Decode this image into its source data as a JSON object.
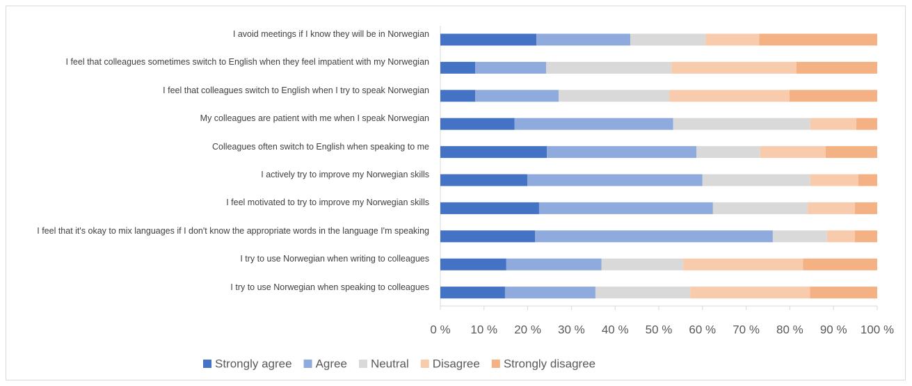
{
  "chart_data": {
    "type": "bar",
    "orientation": "horizontal",
    "stacked": true,
    "categories": [
      "I avoid meetings if I know they will be in Norwegian",
      "I feel that colleagues sometimes switch to English when they feel impatient with my Norwegian",
      "I feel that colleagues switch to English when I try to speak Norwegian",
      "My colleagues are patient with me when I speak Norwegian",
      "Colleagues often switch to English when speaking to me",
      "I actively try to improve my Norwegian skills",
      "I feel motivated to try to improve my Norwegian skills",
      "I feel that it's okay to mix languages if I don't know the appropriate words in the language I'm speaking",
      "I try to use Norwegian when writing to colleagues",
      "I try to use Norwegian when speaking to colleagues"
    ],
    "series": [
      {
        "name": "Strongly agree",
        "color": "#4472c4",
        "values": [
          22.0,
          8.0,
          8.0,
          17.0,
          24.4,
          19.9,
          22.6,
          21.7,
          15.1,
          14.8
        ]
      },
      {
        "name": "Agree",
        "color": "#8faadc",
        "values": [
          21.5,
          16.2,
          19.1,
          36.3,
          34.2,
          40.1,
          39.8,
          54.4,
          21.8,
          20.7
        ]
      },
      {
        "name": "Neutral",
        "color": "#d9d9d9",
        "values": [
          17.2,
          28.7,
          25.3,
          31.4,
          14.6,
          24.7,
          21.7,
          12.4,
          18.7,
          21.7
        ]
      },
      {
        "name": "Disagree",
        "color": "#f8cbad",
        "values": [
          12.3,
          28.6,
          27.5,
          10.5,
          15.0,
          11.0,
          10.8,
          6.4,
          27.4,
          27.4
        ]
      },
      {
        "name": "Strongly disagree",
        "color": "#f4b183",
        "values": [
          27.0,
          18.5,
          20.1,
          4.8,
          11.8,
          4.3,
          5.1,
          5.1,
          17.0,
          15.4
        ]
      }
    ],
    "xlim": [
      0,
      100
    ],
    "xticks": [
      {
        "value": 0,
        "label": "0 %"
      },
      {
        "value": 10,
        "label": "10 %"
      },
      {
        "value": 20,
        "label": "20 %"
      },
      {
        "value": 30,
        "label": "30 %"
      },
      {
        "value": 40,
        "label": "40 %"
      },
      {
        "value": 50,
        "label": "50 %"
      },
      {
        "value": 60,
        "label": "60 %"
      },
      {
        "value": 70,
        "label": "70 %"
      },
      {
        "value": 80,
        "label": "80 %"
      },
      {
        "value": 90,
        "label": "90 %"
      },
      {
        "value": 100,
        "label": "100 %"
      }
    ],
    "legend": "bottom"
  }
}
